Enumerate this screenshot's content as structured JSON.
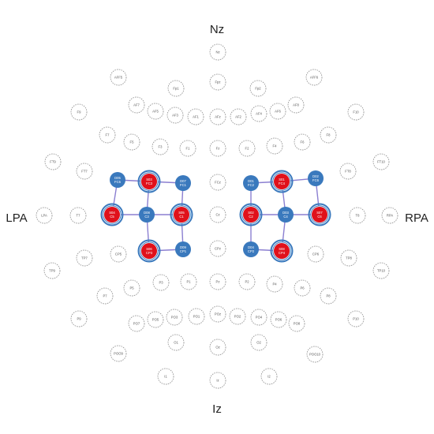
{
  "landmarks": {
    "nz": "Nz",
    "iz": "Iz",
    "lpa": "LPA",
    "rpa": "RPA"
  },
  "colors": {
    "electrode_outline": "#9a9a9a",
    "electrode_text": "#555555",
    "source_fill": "#e0111b",
    "detector_fill": "#3a79bd",
    "ring": "#3a79bd",
    "channel": "#8b7fd1",
    "optode_text": "#ffffff"
  },
  "electrodes": [
    {
      "label": "Nz"
    },
    {
      "label": "Fpz"
    },
    {
      "label": "AFz"
    },
    {
      "label": "Fz"
    },
    {
      "label": "FCz"
    },
    {
      "label": "Cz"
    },
    {
      "label": "CPz"
    },
    {
      "label": "Pz"
    },
    {
      "label": "POz"
    },
    {
      "label": "Oz"
    },
    {
      "label": "Iz"
    },
    {
      "label": "AFF5"
    },
    {
      "label": "Fp1"
    },
    {
      "label": "Fp2"
    },
    {
      "label": "AFF6"
    },
    {
      "label": "AF7"
    },
    {
      "label": "AF5"
    },
    {
      "label": "AF3"
    },
    {
      "label": "AF1"
    },
    {
      "label": "AF2"
    },
    {
      "label": "AF4"
    },
    {
      "label": "AF6"
    },
    {
      "label": "AF8"
    },
    {
      "label": "F9"
    },
    {
      "label": "F10"
    },
    {
      "label": "F7"
    },
    {
      "label": "F5"
    },
    {
      "label": "F3"
    },
    {
      "label": "F1"
    },
    {
      "label": "F2"
    },
    {
      "label": "F4"
    },
    {
      "label": "F6"
    },
    {
      "label": "F8"
    },
    {
      "label": "FT9"
    },
    {
      "label": "FT7"
    },
    {
      "label": "FT8"
    },
    {
      "label": "FT10"
    },
    {
      "label": "LPA"
    },
    {
      "label": "T7"
    },
    {
      "label": "T8"
    },
    {
      "label": "RPA"
    },
    {
      "label": "TP7"
    },
    {
      "label": "CP5"
    },
    {
      "label": "CP6"
    },
    {
      "label": "TP8"
    },
    {
      "label": "TP9"
    },
    {
      "label": "TP10"
    },
    {
      "label": "P7"
    },
    {
      "label": "P5"
    },
    {
      "label": "P3"
    },
    {
      "label": "P1"
    },
    {
      "label": "P2"
    },
    {
      "label": "P4"
    },
    {
      "label": "P6"
    },
    {
      "label": "P8"
    },
    {
      "label": "P9"
    },
    {
      "label": "P10"
    },
    {
      "label": "PO7"
    },
    {
      "label": "PO5"
    },
    {
      "label": "PO3"
    },
    {
      "label": "PO1"
    },
    {
      "label": "PO2"
    },
    {
      "label": "PO4"
    },
    {
      "label": "PO6"
    },
    {
      "label": "PO8"
    },
    {
      "label": "POO9"
    },
    {
      "label": "O1"
    },
    {
      "label": "O2"
    },
    {
      "label": "POO10"
    },
    {
      "label": "I1"
    },
    {
      "label": "I2"
    }
  ],
  "optodes": [
    {
      "type": "detector",
      "line1": "D05",
      "line2": "FC5"
    },
    {
      "type": "source",
      "line1": "S03",
      "line2": "FC3"
    },
    {
      "type": "detector",
      "line1": "D07",
      "line2": "FC1"
    },
    {
      "type": "source",
      "line1": "S04",
      "line2": "C5"
    },
    {
      "type": "detector",
      "line1": "D08",
      "line2": "C3"
    },
    {
      "type": "source",
      "line1": "S05",
      "line2": "C1"
    },
    {
      "type": "source",
      "line1": "S06",
      "line2": "CP3"
    },
    {
      "type": "detector",
      "line1": "D09",
      "line2": "CP1"
    },
    {
      "type": "detector",
      "line1": "D01",
      "line2": "FC2"
    },
    {
      "type": "source",
      "line1": "S01",
      "line2": "FC4"
    },
    {
      "type": "detector",
      "line1": "D02",
      "line2": "FC6"
    },
    {
      "type": "source",
      "line1": "S02",
      "line2": "C2"
    },
    {
      "type": "detector",
      "line1": "D03",
      "line2": "C4"
    },
    {
      "type": "source",
      "line1": "S07",
      "line2": "C6"
    },
    {
      "type": "detector",
      "line1": "D04",
      "line2": "CP2"
    },
    {
      "type": "source",
      "line1": "S08",
      "line2": "CP4"
    }
  ]
}
